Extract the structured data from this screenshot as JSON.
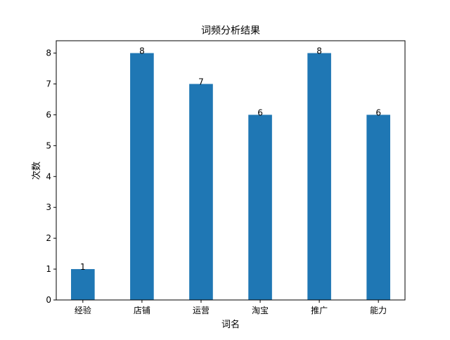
{
  "chart_data": {
    "type": "bar",
    "title": "词频分析结果",
    "xlabel": "词名",
    "ylabel": "次数",
    "categories": [
      "经验",
      "店铺",
      "运营",
      "淘宝",
      "推广",
      "能力"
    ],
    "values": [
      1,
      8,
      7,
      6,
      8,
      6
    ],
    "ylim": [
      0,
      8.4
    ],
    "yticks": [
      0,
      1,
      2,
      3,
      4,
      5,
      6,
      7,
      8
    ],
    "grid": false,
    "legend": "none",
    "bar_color": "#1f77b4",
    "data_labels": true
  }
}
